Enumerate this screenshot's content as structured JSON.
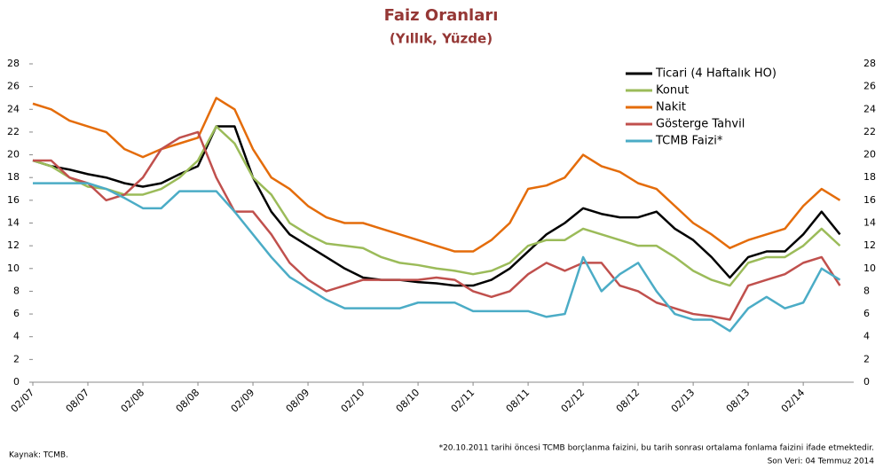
{
  "chart_data": {
    "type": "line",
    "title": "Faiz Oranları",
    "subtitle": "(Yıllık, Yüzde)",
    "source": "Kaynak: TCMB.",
    "footnote": "*20.10.2011 tarihi öncesi TCMB borçlanma faizini, bu tarih sonrası ortalama fonlama faizini ifade etmektedir.",
    "last_data": "Son Veri: 04 Temmuz 2014",
    "categories": [
      "02/07",
      null,
      null,
      "08/07",
      null,
      null,
      "02/08",
      null,
      null,
      "08/08",
      null,
      null,
      "02/09",
      null,
      null,
      "08/09",
      null,
      null,
      "02/10",
      null,
      null,
      "08/10",
      null,
      null,
      "02/11",
      null,
      null,
      "08/11",
      null,
      null,
      "02/12",
      null,
      null,
      "08/12",
      null,
      null,
      "02/13",
      null,
      null,
      "08/13",
      null,
      null,
      "02/14",
      null,
      null
    ],
    "series": [
      {
        "name": "Ticari (4 Haftalık HO)",
        "color": "#000000",
        "values": [
          19.5,
          19,
          18.7,
          18.3,
          18,
          17.5,
          17.2,
          17.5,
          18.3,
          19,
          22.5,
          22.5,
          18,
          15,
          13,
          12,
          11,
          10,
          9.2,
          9,
          9,
          8.8,
          8.7,
          8.5,
          8.5,
          9,
          10,
          11.5,
          13,
          14,
          15.3,
          14.8,
          14.5,
          14.5,
          15,
          13.5,
          12.5,
          11,
          9.2,
          11,
          11.5,
          11.5,
          13,
          15,
          13
        ]
      },
      {
        "name": "Konut",
        "color": "#9bbb59",
        "values": [
          19.5,
          19,
          18,
          17.2,
          17,
          16.5,
          16.5,
          17,
          18,
          19.5,
          22.5,
          21,
          18,
          16.5,
          14,
          13,
          12.2,
          12,
          11.8,
          11,
          10.5,
          10.3,
          10,
          9.8,
          9.5,
          9.8,
          10.5,
          12,
          12.5,
          12.5,
          13.5,
          13,
          12.5,
          12,
          12,
          11,
          9.8,
          9,
          8.5,
          10.5,
          11,
          11,
          12,
          13.5,
          12
        ]
      },
      {
        "name": "Nakit",
        "color": "#e46c0a",
        "values": [
          24.5,
          24,
          23,
          22.5,
          22,
          20.5,
          19.8,
          20.5,
          21,
          21.5,
          25,
          24,
          20.5,
          18,
          17,
          15.5,
          14.5,
          14,
          14,
          13.5,
          13,
          12.5,
          12,
          11.5,
          11.5,
          12.5,
          14,
          17,
          17.3,
          18,
          20,
          19,
          18.5,
          17.5,
          17,
          15.5,
          14,
          13,
          11.8,
          12.5,
          13,
          13.5,
          15.5,
          17,
          16
        ]
      },
      {
        "name": "Gösterge Tahvil",
        "color": "#c0504d",
        "values": [
          19.5,
          19.5,
          18,
          17.5,
          16,
          16.5,
          18,
          20.5,
          21.5,
          22,
          18,
          15,
          15,
          13,
          10.5,
          9,
          8,
          8.5,
          9,
          9,
          9,
          9,
          9.2,
          9,
          8,
          7.5,
          8,
          9.5,
          10.5,
          9.8,
          10.5,
          10.5,
          8.5,
          8,
          7,
          6.5,
          6,
          5.8,
          5.5,
          8.5,
          9,
          9.5,
          10.5,
          11,
          8.5
        ]
      },
      {
        "name": "TCMB Faizi*",
        "color": "#4bacc6",
        "values": [
          17.5,
          17.5,
          17.5,
          17.5,
          17,
          16.2,
          15.3,
          15.3,
          16.8,
          16.8,
          16.8,
          15,
          13,
          11,
          9.25,
          8.25,
          7.25,
          6.5,
          6.5,
          6.5,
          6.5,
          7,
          7,
          7,
          6.25,
          6.25,
          6.25,
          6.25,
          5.75,
          6,
          11,
          8,
          9.5,
          10.5,
          8,
          6,
          5.5,
          5.5,
          4.5,
          6.5,
          7.5,
          6.5,
          7,
          10,
          9
        ]
      }
    ],
    "ylim": [
      0,
      28
    ],
    "yticks": [
      0,
      2,
      4,
      6,
      8,
      10,
      12,
      14,
      16,
      18,
      20,
      22,
      24,
      26,
      28
    ],
    "y2lim": [
      0,
      28
    ],
    "y2ticks": [
      0,
      2,
      4,
      6,
      8,
      10,
      12,
      14,
      16,
      18,
      20,
      22,
      24,
      26,
      28
    ],
    "grid": false,
    "legend": "top-right"
  }
}
